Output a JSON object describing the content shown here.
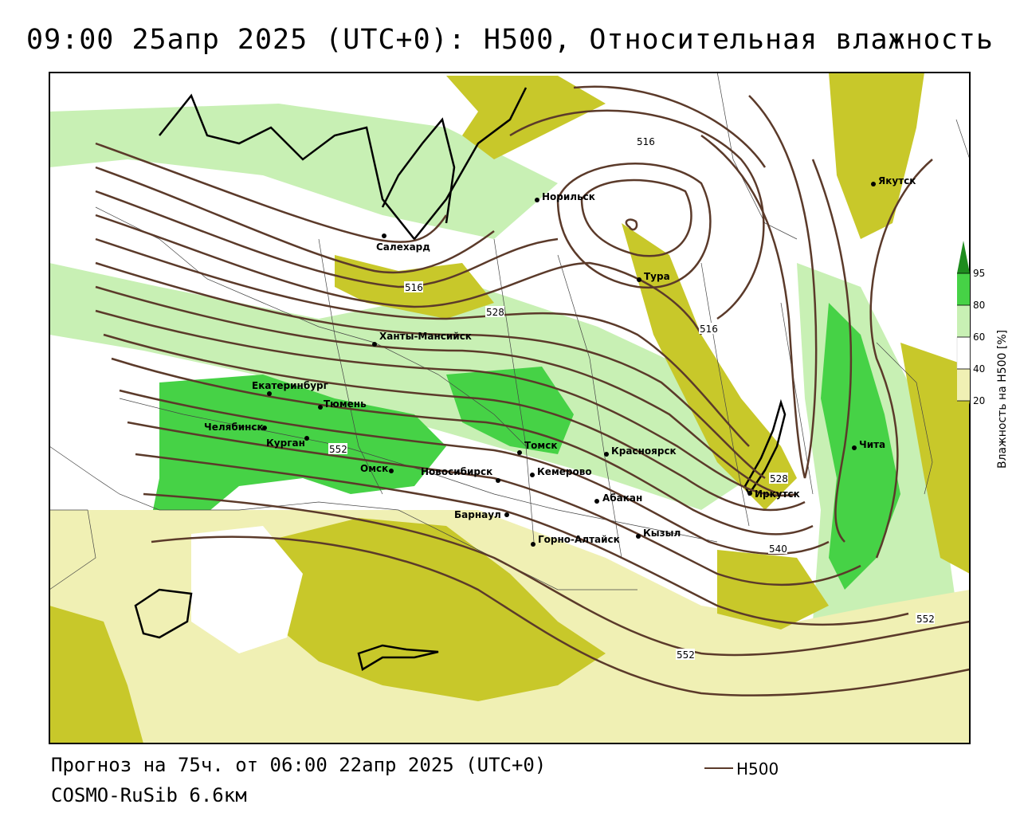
{
  "header": {
    "title": "09:00 25апр 2025 (UTC+0): H500, Относительная влажность"
  },
  "footer": {
    "forecast": "Прогноз на 75ч. от 06:00 22апр 2025 (UTC+0)",
    "model": "COSMO-RuSib 6.6км"
  },
  "line_legend": {
    "label": "H500",
    "color": "#5b3a2a"
  },
  "colorbar": {
    "title": "Влажность на H500 [%]",
    "ticks": [
      "20",
      "40",
      "60",
      "80",
      "95"
    ],
    "colors": [
      "#c8c82a",
      "#f0f0b4",
      "#ffffff",
      "#c8f0b4",
      "#46d246",
      "#1e8c1e"
    ]
  },
  "cities": [
    {
      "name": "Салехард"
    },
    {
      "name": "Норильск"
    },
    {
      "name": "Якутск"
    },
    {
      "name": "Тура"
    },
    {
      "name": "Ханты-Мансийск"
    },
    {
      "name": "Екатеринбург"
    },
    {
      "name": "Тюмень"
    },
    {
      "name": "Челябинск"
    },
    {
      "name": "Курган"
    },
    {
      "name": "Омск"
    },
    {
      "name": "Новосибирск"
    },
    {
      "name": "Томск"
    },
    {
      "name": "Кемерово"
    },
    {
      "name": "Красноярск"
    },
    {
      "name": "Абакан"
    },
    {
      "name": "Барнаул"
    },
    {
      "name": "Горно-Алтайск"
    },
    {
      "name": "Кызыл"
    },
    {
      "name": "Иркутск"
    },
    {
      "name": "Чита"
    }
  ],
  "isohypse_labels": [
    "516",
    "516",
    "516",
    "528",
    "552",
    "528",
    "540",
    "552",
    "552"
  ]
}
